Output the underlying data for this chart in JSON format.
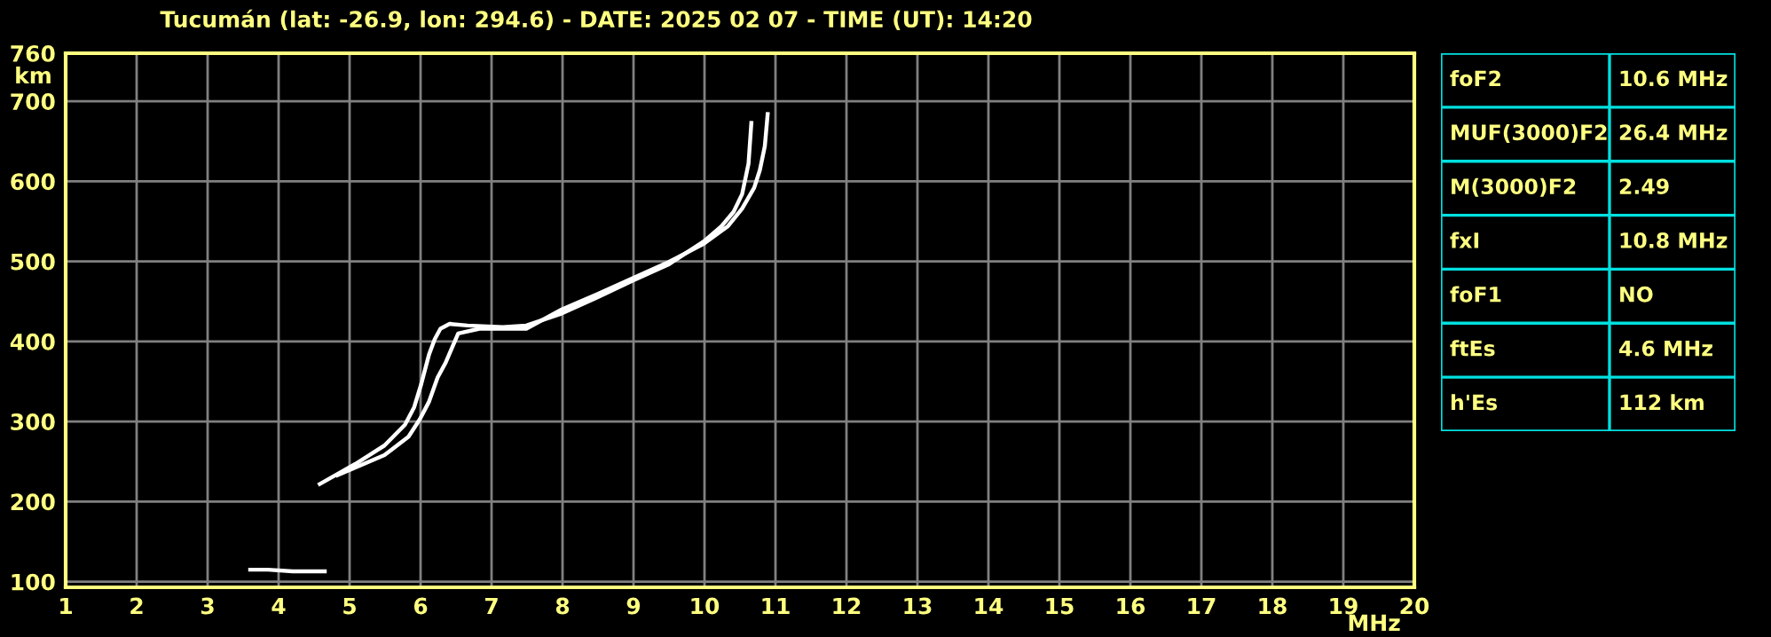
{
  "chart_data": [
    {
      "type": "line",
      "title": "Tucumán (lat: -26.9, lon: 294.6) - DATE: 2025 02 07 - TIME (UT): 14:20",
      "xlabel": "MHz",
      "ylabel": "km",
      "xlim": [
        1,
        20
      ],
      "ylim": [
        93,
        760
      ],
      "xticks": [
        1,
        2,
        3,
        4,
        5,
        6,
        7,
        8,
        9,
        10,
        11,
        12,
        13,
        14,
        15,
        16,
        17,
        18,
        19,
        20
      ],
      "yticks": [
        100,
        200,
        300,
        400,
        500,
        600,
        700,
        760
      ],
      "grid": true,
      "marker": "none",
      "line_style": "solid",
      "series": [
        {
          "color": "#ffffff",
          "x": [
            4.58,
            5.08,
            5.49,
            5.78,
            5.91,
            6.01,
            6.12,
            6.2,
            6.28,
            6.41,
            6.66,
            7.16,
            7.49,
            7.99,
            8.49,
            8.99,
            9.49,
            9.99,
            10.24,
            10.41,
            10.53,
            10.62,
            10.66
          ],
          "values": [
            222,
            247,
            270,
            296,
            318,
            347,
            384,
            403,
            416,
            422,
            420,
            418,
            420,
            435,
            455,
            476,
            496,
            525,
            544,
            562,
            584,
            622,
            673
          ]
        },
        {
          "color": "#ffffff",
          "x": [
            4.83,
            5.49,
            5.83,
            5.99,
            6.12,
            6.24,
            6.35,
            6.53,
            6.83,
            7.49,
            7.99,
            8.49,
            8.99,
            9.49,
            9.99,
            10.33,
            10.53,
            10.7,
            10.78,
            10.85,
            10.89
          ],
          "values": [
            233,
            258,
            281,
            303,
            325,
            355,
            373,
            410,
            416,
            416,
            440,
            459,
            479,
            499,
            522,
            544,
            566,
            592,
            614,
            644,
            684
          ]
        },
        {
          "color": "#ffffff",
          "x": [
            3.6,
            3.85,
            4.2,
            4.65
          ],
          "values": [
            115,
            115,
            113,
            113
          ]
        }
      ]
    },
    {
      "type": "other",
      "categories": [
        "foF2",
        "MUF(3000)F2",
        "M(3000)F2",
        "fxI",
        "foF1",
        "ftEs",
        "h'Es"
      ],
      "value_labels": [
        "10.6 MHz",
        "26.4 MHz",
        "2.49",
        "10.8 MHz",
        "NO",
        "4.6 MHz",
        "112 km"
      ]
    }
  ]
}
